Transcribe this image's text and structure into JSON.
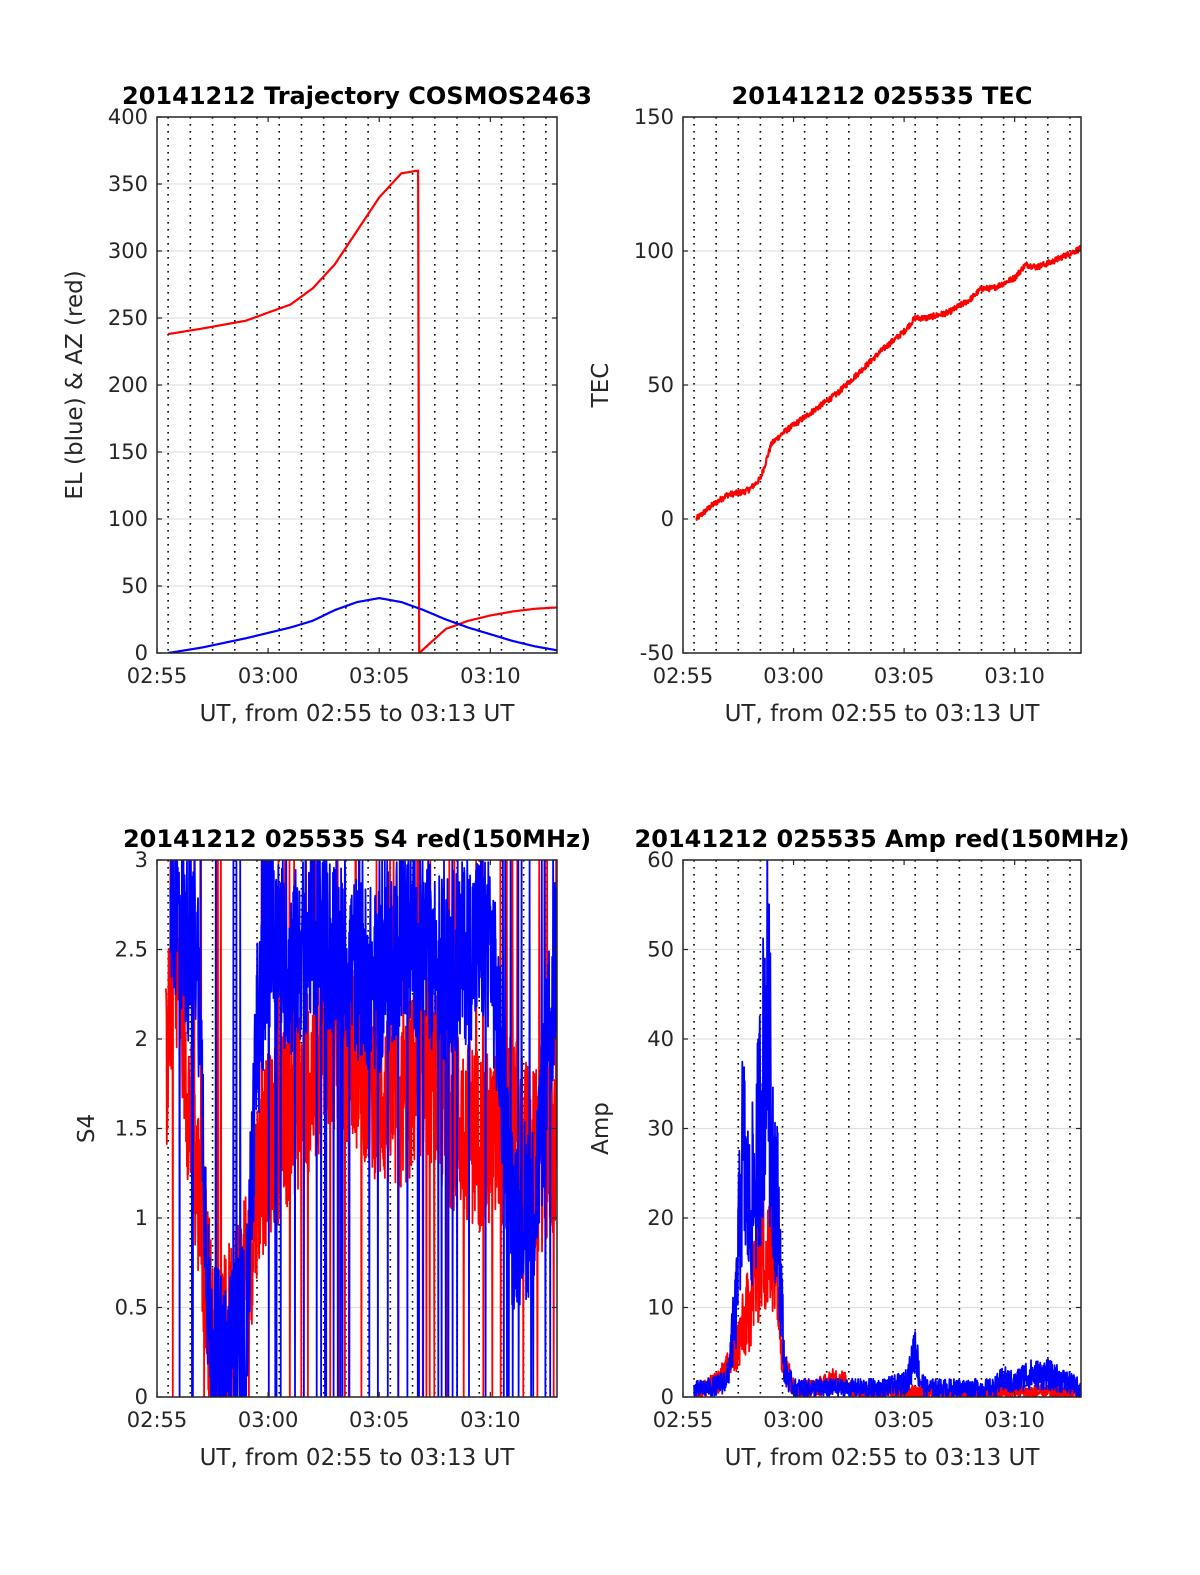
{
  "chart_data": [
    {
      "type": "line",
      "title": "20141212 Trajectory COSMOS2463",
      "xlabel": "UT, from 02:55 to 03:13 UT",
      "ylabel": "EL (blue) & AZ (red)",
      "xlim": [
        0,
        18
      ],
      "ylim": [
        0,
        400
      ],
      "yticks": [
        0,
        50,
        100,
        150,
        200,
        250,
        300,
        350,
        400
      ],
      "ytick_labels": [
        "0",
        "50",
        "100",
        "150",
        "200",
        "250",
        "300",
        "350",
        "400"
      ],
      "xticks": [
        0,
        5,
        10,
        15
      ],
      "xtick_labels": [
        "02:55",
        "03:00",
        "03:05",
        "03:10"
      ],
      "xgrid_minutes": [
        0.5,
        1.5,
        2.5,
        3.5,
        4.5,
        5.5,
        6.5,
        7.5,
        8.5,
        9.5,
        10.5,
        11.5,
        12.5,
        13.5,
        14.5,
        15.5,
        16.5,
        17.5
      ],
      "grid": true,
      "series": [
        {
          "color": "#ff0000",
          "style": "smooth",
          "x": [
            0.5,
            2,
            4,
            6,
            7,
            8,
            9,
            10,
            11,
            11.75,
            11.8,
            13,
            14,
            15,
            16,
            17,
            18
          ],
          "y": [
            238,
            242,
            248,
            260,
            272,
            290,
            315,
            340,
            358,
            360,
            0,
            18,
            24,
            28,
            31,
            33,
            34
          ]
        },
        {
          "color": "#0000ff",
          "style": "smooth",
          "x": [
            0.5,
            2,
            4,
            6,
            7,
            8,
            9,
            10,
            11,
            12,
            13,
            14,
            15,
            16,
            17,
            18
          ],
          "y": [
            0,
            4,
            11,
            19,
            24,
            32,
            38,
            41,
            38,
            32,
            25,
            19,
            14,
            9,
            5,
            2
          ]
        }
      ]
    },
    {
      "type": "line",
      "title": "20141212 025535 TEC",
      "xlabel": "UT, from 02:55 to 03:13 UT",
      "ylabel": "TEC",
      "xlim": [
        0,
        18
      ],
      "ylim": [
        -50,
        150
      ],
      "yticks": [
        -50,
        0,
        50,
        100,
        150
      ],
      "ytick_labels": [
        "-50",
        "0",
        "50",
        "100",
        "150"
      ],
      "xticks": [
        0,
        5,
        10,
        15
      ],
      "xtick_labels": [
        "02:55",
        "03:00",
        "03:05",
        "03:10"
      ],
      "xgrid_minutes": [
        0.5,
        1.5,
        2.5,
        3.5,
        4.5,
        5.5,
        6.5,
        7.5,
        8.5,
        9.5,
        10.5,
        11.5,
        12.5,
        13.5,
        14.5,
        15.5,
        16.5,
        17.5
      ],
      "grid": true,
      "series": [
        {
          "color": "#ff0000",
          "style": "noisy",
          "x": [
            0.6,
            1.3,
            2,
            2.7,
            3,
            3.5,
            4,
            4.5,
            5,
            6,
            7,
            8,
            9,
            10,
            10.5,
            11,
            12,
            13,
            13.5,
            14,
            15,
            15.5,
            16,
            16.7,
            17.2,
            18
          ],
          "y": [
            0,
            5,
            9,
            10,
            11,
            15,
            28,
            32,
            35,
            41,
            47,
            55,
            63,
            70,
            75,
            75,
            77,
            82,
            86,
            86,
            90,
            95,
            94,
            96,
            98,
            101
          ]
        }
      ]
    },
    {
      "type": "line",
      "title": "20141212 025535 S4 red(150MHz)",
      "xlabel": "UT, from 02:55 to 03:13 UT",
      "ylabel": "S4",
      "xlim": [
        0,
        18
      ],
      "ylim": [
        0,
        3
      ],
      "yticks": [
        0,
        0.5,
        1,
        1.5,
        2,
        2.5,
        3
      ],
      "ytick_labels": [
        "0",
        "0.5",
        "1",
        "1.5",
        "2",
        "2.5",
        "3"
      ],
      "xticks": [
        0,
        5,
        10,
        15
      ],
      "xtick_labels": [
        "02:55",
        "03:00",
        "03:05",
        "03:10"
      ],
      "xgrid_minutes": [
        0.5,
        1.5,
        2.5,
        3.5,
        4.5,
        5.5,
        6.5,
        7.5,
        8.5,
        9.5,
        10.5,
        11.5,
        12.5,
        13.5,
        14.5,
        15.5,
        16.5,
        17.5
      ],
      "grid": true,
      "series": [
        {
          "color": "#ff0000",
          "style": "spiky",
          "x": [
            0.4,
            0.8,
            1.2,
            1.6,
            2,
            2.6,
            3,
            3.5,
            4,
            4.5,
            5,
            6,
            7,
            8,
            9,
            10,
            11,
            12,
            13,
            14,
            15,
            16,
            17,
            18
          ],
          "y": [
            1.8,
            2.6,
            2.0,
            1.4,
            1.0,
            0.15,
            0.25,
            0.5,
            0.6,
            1.2,
            1.4,
            1.6,
            1.8,
            2.0,
            1.9,
            1.7,
            1.6,
            1.9,
            1.6,
            1.5,
            1.4,
            1.5,
            1.3,
            1.4
          ]
        },
        {
          "color": "#0000ff",
          "style": "spiky",
          "x": [
            0.6,
            1.0,
            1.4,
            1.8,
            2.4,
            3,
            3.5,
            4,
            4.5,
            5,
            6,
            7,
            8,
            9,
            10,
            11,
            12,
            13,
            14,
            15,
            16,
            17,
            18
          ],
          "y": [
            2.8,
            2.7,
            2.5,
            2.6,
            0.2,
            0.2,
            0.25,
            0.35,
            2.0,
            2.6,
            2.4,
            2.6,
            2.5,
            2.4,
            2.3,
            2.6,
            2.5,
            2.4,
            2.5,
            2.6,
            1.0,
            1.1,
            2.5
          ]
        }
      ]
    },
    {
      "type": "line",
      "title": "20141212 025535 Amp red(150MHz)",
      "xlabel": "UT, from 02:55 to 03:13 UT",
      "ylabel": "Amp",
      "xlim": [
        0,
        18
      ],
      "ylim": [
        0,
        60
      ],
      "yticks": [
        0,
        10,
        20,
        30,
        40,
        50,
        60
      ],
      "ytick_labels": [
        "0",
        "10",
        "20",
        "30",
        "40",
        "50",
        "60"
      ],
      "xticks": [
        0,
        5,
        10,
        15
      ],
      "xtick_labels": [
        "02:55",
        "03:00",
        "03:05",
        "03:10"
      ],
      "xgrid_minutes": [
        0.5,
        1.5,
        2.5,
        3.5,
        4.5,
        5.5,
        6.5,
        7.5,
        8.5,
        9.5,
        10.5,
        11.5,
        12.5,
        13.5,
        14.5,
        15.5,
        16.5,
        17.5
      ],
      "grid": true,
      "series": [
        {
          "color": "#ff0000",
          "style": "spiky",
          "x": [
            0.5,
            1.5,
            2.0,
            2.5,
            3.0,
            3.3,
            3.6,
            3.9,
            4.2,
            4.5,
            5,
            6,
            7,
            8,
            18
          ],
          "y": [
            0.5,
            1.5,
            3,
            6,
            10,
            14,
            18,
            15,
            20,
            4,
            1,
            1,
            2,
            0.5,
            0.5
          ]
        },
        {
          "color": "#0000ff",
          "style": "spiky",
          "x": [
            0.5,
            1.5,
            2.0,
            2.4,
            2.7,
            3.0,
            3.3,
            3.6,
            3.8,
            4.0,
            4.3,
            4.6,
            5,
            6,
            7,
            8,
            9,
            10,
            10.3,
            10.5,
            10.7,
            11,
            12,
            13,
            14,
            14.5,
            15,
            15.5,
            16,
            16.5,
            17,
            17.5,
            18
          ],
          "y": [
            0.8,
            1.2,
            2,
            10,
            28,
            20,
            25,
            35,
            45,
            30,
            20,
            3,
            1,
            1,
            1,
            1,
            1,
            1.5,
            3,
            6,
            2,
            1,
            1,
            1,
            1,
            2,
            1.5,
            2.5,
            2.5,
            2.5,
            2,
            1.5,
            1
          ]
        }
      ]
    }
  ]
}
